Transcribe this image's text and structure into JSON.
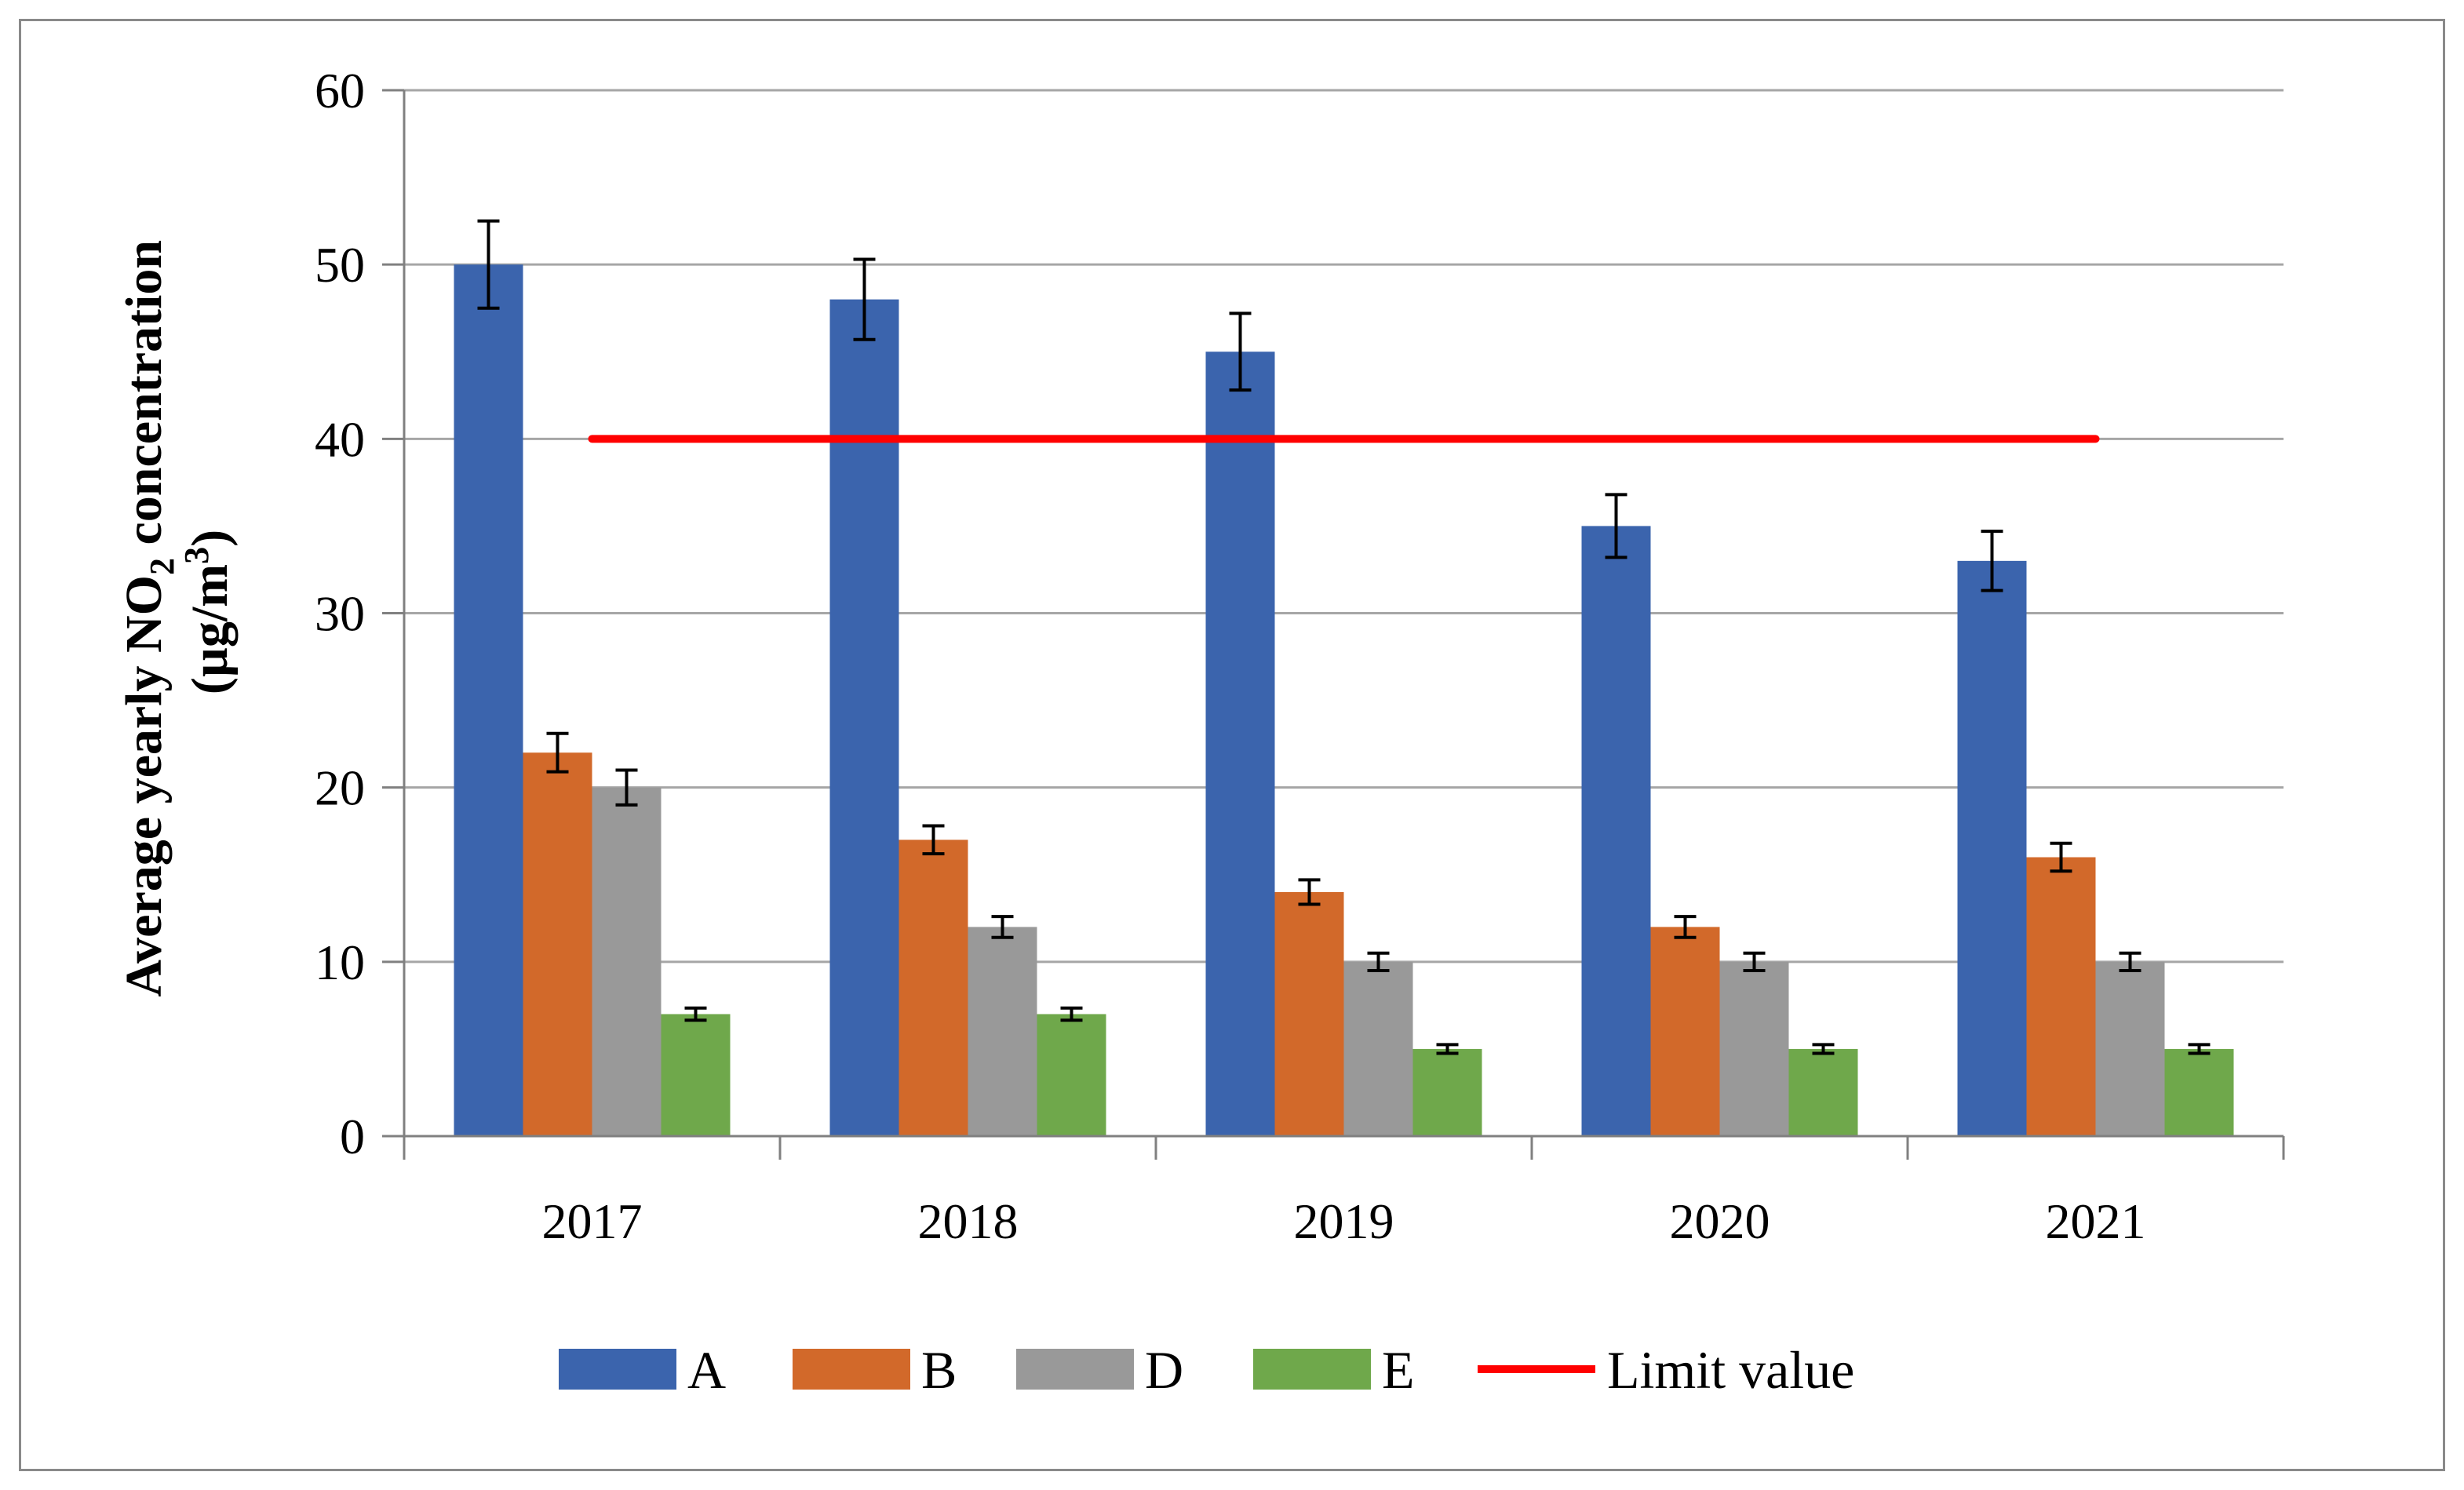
{
  "chart_data": {
    "type": "bar",
    "ylabel_line1_prefix": "Average yearly NO",
    "ylabel_line1_sub": "2",
    "ylabel_line1_suffix": " concentration",
    "ylabel_line2_prefix": "(µg/m",
    "ylabel_line2_sup": "3",
    "ylabel_line2_suffix": ")",
    "ylim": [
      0,
      60
    ],
    "yticks": [
      "0",
      "10",
      "20",
      "30",
      "40",
      "50",
      "60"
    ],
    "categories": [
      "2017",
      "2018",
      "2019",
      "2020",
      "2021"
    ],
    "grid": true,
    "legend_position": "bottom",
    "series": [
      {
        "name": "A",
        "color": "#3b64ad",
        "values": [
          50,
          48,
          45,
          35,
          33
        ],
        "errors": [
          2.5,
          2.3,
          2.2,
          1.8,
          1.7
        ]
      },
      {
        "name": "B",
        "color": "#d2692a",
        "values": [
          22,
          17,
          14,
          12,
          16
        ],
        "errors": [
          1.1,
          0.8,
          0.7,
          0.6,
          0.8
        ]
      },
      {
        "name": "D",
        "color": "#999999",
        "values": [
          20,
          12,
          10,
          10,
          10
        ],
        "errors": [
          1.0,
          0.6,
          0.5,
          0.5,
          0.5
        ]
      },
      {
        "name": "E",
        "color": "#6fa84b",
        "values": [
          7,
          7,
          5,
          5,
          5
        ],
        "errors": [
          0.35,
          0.35,
          0.25,
          0.25,
          0.25
        ]
      }
    ],
    "limit_line": {
      "name": "Limit value",
      "value": 40,
      "color": "#ff0000",
      "from_category": "2017",
      "to_category": "2021"
    }
  }
}
